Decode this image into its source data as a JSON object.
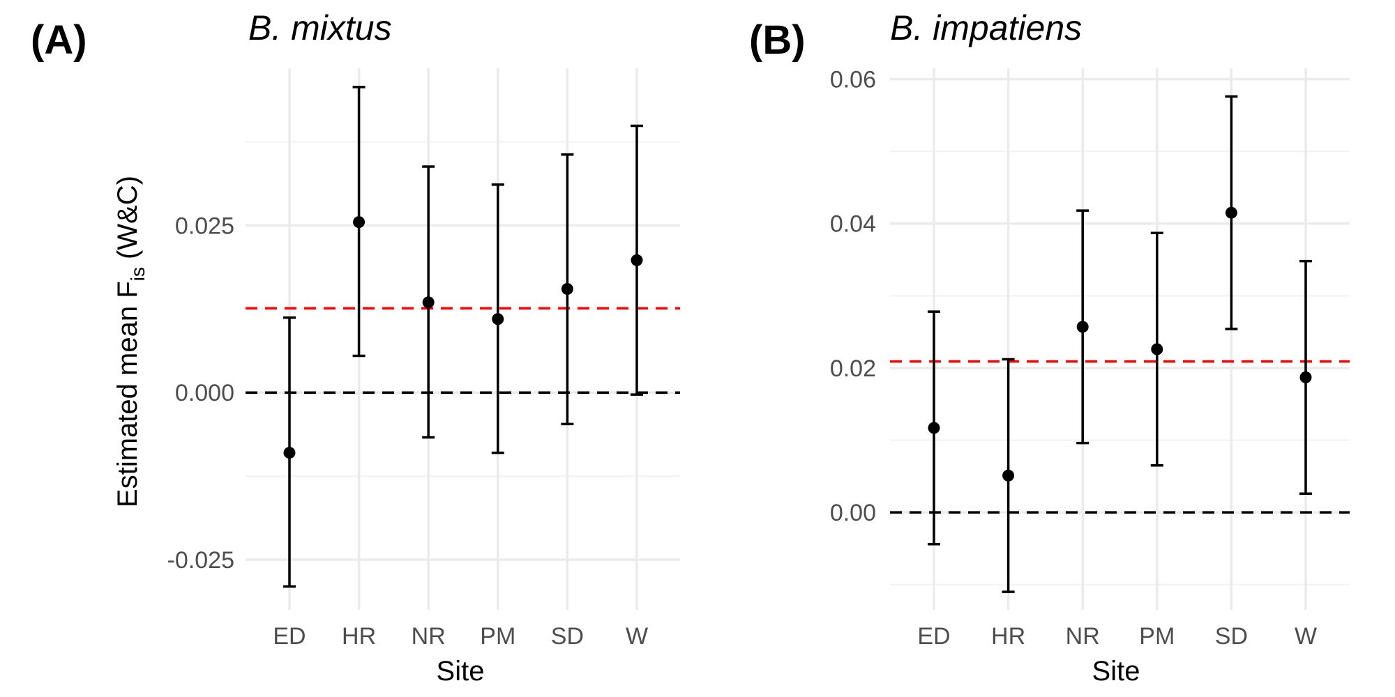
{
  "y_axis_title": {
    "prefix": "Estimated mean F",
    "subscript": "is",
    "suffix": " (W&C)"
  },
  "chart_data": [
    {
      "type": "scatter",
      "panel_label": "(A)",
      "title": "B. mixtus",
      "xlabel": "Site",
      "categories": [
        "ED",
        "HR",
        "NR",
        "PM",
        "SD",
        "W"
      ],
      "estimate": [
        -0.009,
        0.0255,
        0.0135,
        0.011,
        0.0155,
        0.0198
      ],
      "lower": [
        -0.029,
        0.0055,
        -0.0067,
        -0.009,
        -0.0047,
        -0.0003
      ],
      "upper": [
        0.0112,
        0.0457,
        0.0338,
        0.0311,
        0.0356,
        0.0399
      ],
      "reference_lines": [
        {
          "value": 0.0126,
          "color": "#ff0000",
          "style": "dashed"
        },
        {
          "value": 0.0,
          "color": "#000000",
          "style": "dashed"
        }
      ],
      "yticks": [
        "-0.025",
        "0.000",
        "0.025"
      ],
      "ytick_values": [
        -0.025,
        0.0,
        0.025
      ],
      "minor_ticks": [
        -0.0125,
        0.0125,
        0.0375
      ],
      "ylim": [
        -0.0325,
        0.0485
      ],
      "grid": true
    },
    {
      "type": "scatter",
      "panel_label": "(B)",
      "title": "B. impatiens",
      "xlabel": "Site",
      "categories": [
        "ED",
        "HR",
        "NR",
        "PM",
        "SD",
        "W"
      ],
      "estimate": [
        0.0117,
        0.0051,
        0.0257,
        0.0226,
        0.0415,
        0.0187
      ],
      "lower": [
        -0.0044,
        -0.011,
        0.0096,
        0.0065,
        0.0254,
        0.0026
      ],
      "upper": [
        0.0278,
        0.0212,
        0.0418,
        0.0387,
        0.0576,
        0.0348
      ],
      "reference_lines": [
        {
          "value": 0.0209,
          "color": "#ff0000",
          "style": "dashed"
        },
        {
          "value": 0.0,
          "color": "#000000",
          "style": "dashed"
        }
      ],
      "yticks": [
        "0.00",
        "0.02",
        "0.04",
        "0.06"
      ],
      "ytick_values": [
        0.0,
        0.02,
        0.04,
        0.06
      ],
      "minor_ticks": [
        -0.01,
        0.01,
        0.03,
        0.05
      ],
      "ylim": [
        -0.0135,
        0.0615
      ],
      "grid": true
    }
  ]
}
